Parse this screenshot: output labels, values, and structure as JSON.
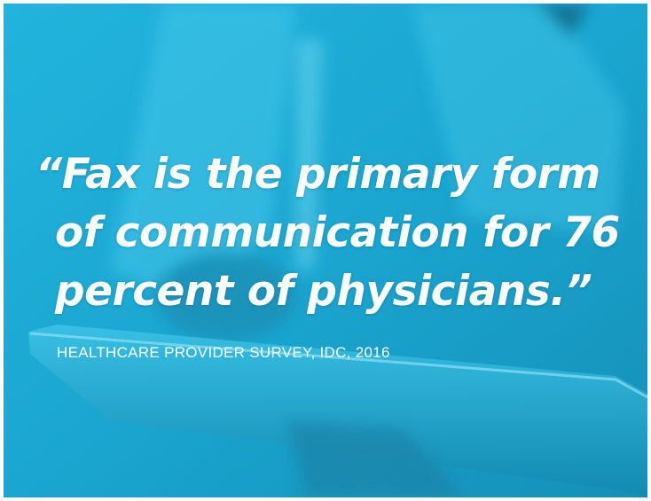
{
  "quote": {
    "lines": [
      "“Fax is the primary form",
      "of communication for 76",
      "percent of physicians.”"
    ]
  },
  "attribution": "HEALTHCARE PROVIDER SURVEY, IDC, 2016"
}
